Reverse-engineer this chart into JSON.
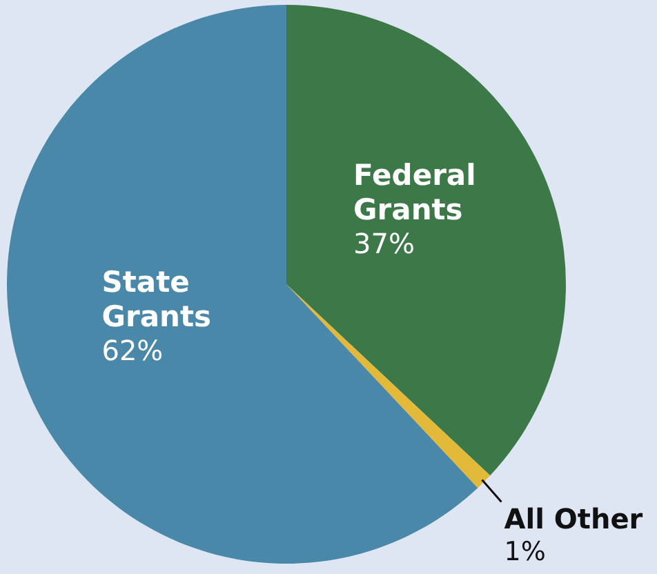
{
  "chart_data": {
    "type": "pie",
    "categories": [
      "Federal Grants",
      "All Other",
      "State Grants"
    ],
    "values": [
      37,
      1,
      62
    ],
    "value_labels": [
      "37%",
      "1%",
      "62%"
    ],
    "colors": [
      "#3d7849",
      "#e3b93a",
      "#4a88a9"
    ],
    "legend": false
  }
}
